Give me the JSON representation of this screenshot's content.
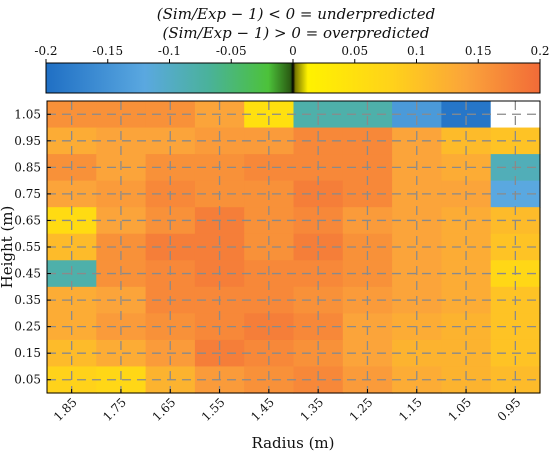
{
  "chart_data": {
    "type": "heatmap",
    "title_lines": [
      "(Sim/Exp − 1) < 0 = underpredicted",
      "(Sim/Exp − 1) > 0 = overpredicted"
    ],
    "xlabel": "Radius (m)",
    "ylabel": "Height (m)",
    "x_categories": [
      "1.85",
      "1.75",
      "1.65",
      "1.55",
      "1.45",
      "1.35",
      "1.25",
      "1.15",
      "1.05",
      "0.95"
    ],
    "y_categories": [
      "1.05",
      "0.95",
      "0.85",
      "0.75",
      "0.65",
      "0.55",
      "0.45",
      "0.35",
      "0.25",
      "0.15",
      "0.05"
    ],
    "colorbar": {
      "range": [
        -0.2,
        0.2
      ],
      "tick_labels": [
        "-0.2",
        "-0.15",
        "-0.1",
        "-0.05",
        "0",
        "0.05",
        "0.1",
        "0.15",
        "0.2"
      ],
      "orientation": "horizontal",
      "position": "top"
    },
    "grid": true,
    "values": [
      [
        0.16,
        0.16,
        0.16,
        0.14,
        0.05,
        -0.08,
        -0.08,
        -0.14,
        -0.19,
        null
      ],
      [
        0.13,
        0.14,
        0.14,
        0.15,
        0.15,
        0.17,
        0.17,
        0.14,
        0.11,
        0.1
      ],
      [
        0.16,
        0.14,
        0.16,
        0.16,
        0.17,
        0.17,
        0.17,
        0.14,
        0.13,
        -0.09
      ],
      [
        0.14,
        0.15,
        0.17,
        0.16,
        0.16,
        0.18,
        0.17,
        0.14,
        0.14,
        -0.12
      ],
      [
        0.06,
        0.14,
        0.16,
        0.18,
        0.16,
        0.17,
        0.15,
        0.14,
        0.13,
        0.11
      ],
      [
        0.11,
        0.16,
        0.18,
        0.18,
        0.16,
        0.18,
        0.16,
        0.14,
        0.13,
        0.1
      ],
      [
        -0.08,
        0.16,
        0.17,
        0.18,
        0.17,
        0.17,
        0.16,
        0.14,
        0.13,
        0.07
      ],
      [
        0.13,
        0.14,
        0.17,
        0.17,
        0.17,
        0.16,
        0.15,
        0.14,
        0.13,
        0.1
      ],
      [
        0.13,
        0.15,
        0.16,
        0.17,
        0.18,
        0.17,
        0.14,
        0.13,
        0.12,
        0.1
      ],
      [
        0.11,
        0.13,
        0.15,
        0.18,
        0.17,
        0.16,
        0.14,
        0.12,
        0.12,
        0.1
      ],
      [
        0.08,
        0.07,
        0.12,
        0.15,
        0.16,
        0.17,
        0.15,
        0.13,
        0.12,
        0.11
      ]
    ]
  }
}
